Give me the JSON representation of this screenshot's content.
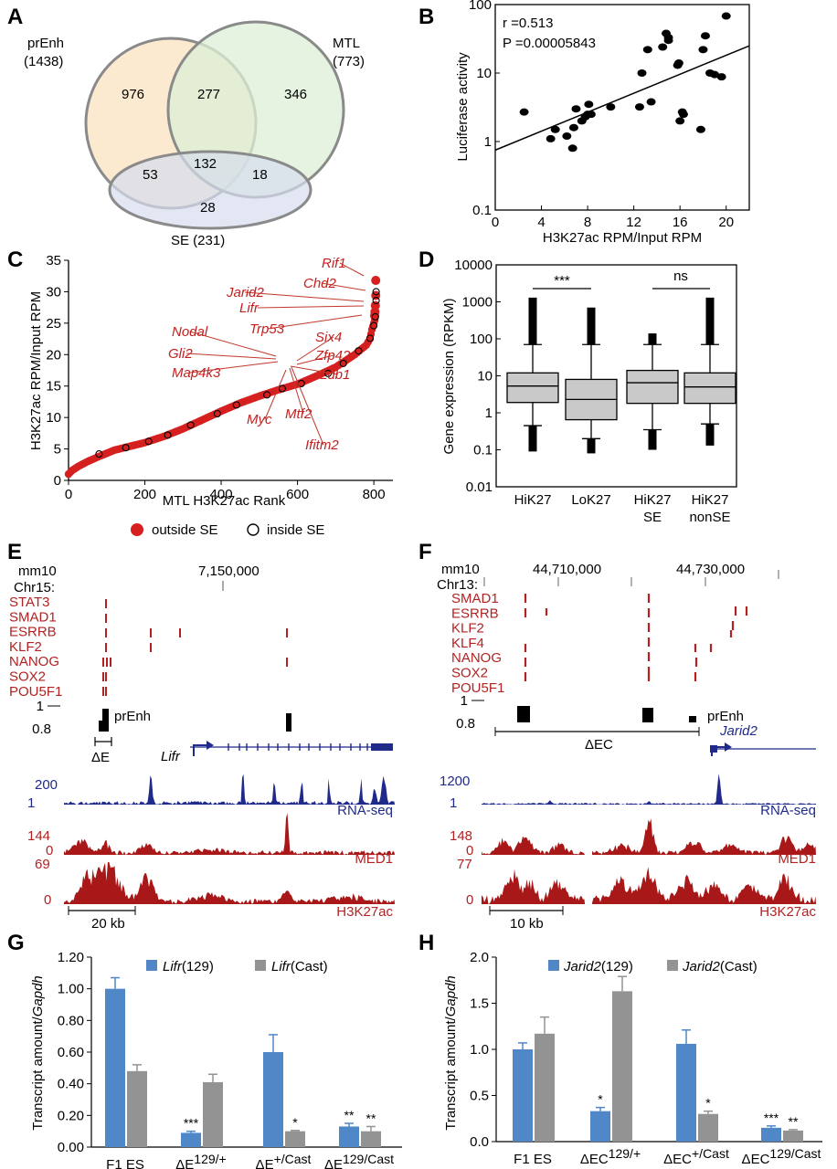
{
  "panels": {
    "A": {
      "label": "A",
      "sets": [
        {
          "name": "prEnh",
          "count": "(1438)",
          "color": "#fbe6c8"
        },
        {
          "name": "MTL",
          "count": "(773)",
          "color": "#dcefd6"
        },
        {
          "name": "SE (231)",
          "color": "#dce3f2"
        }
      ],
      "regions": {
        "prEnh_only": "976",
        "prEnh_MTL": "277",
        "MTL_only": "346",
        "prEnh_SE": "53",
        "all": "132",
        "MTL_SE": "18",
        "SE_only": "28"
      }
    },
    "B": {
      "label": "B",
      "r_text": "r =0.513",
      "p_text": "P =0.00005843",
      "xlabel": "H3K27ac RPM/Input RPM",
      "ylabel": "Luciferase activity",
      "xticks": [
        "0",
        "4",
        "8",
        "12",
        "16",
        "20"
      ],
      "yticks": [
        "100",
        "10",
        "1",
        "0.1"
      ]
    },
    "C": {
      "label": "C",
      "xlabel": "MTL H3K27ac Rank",
      "ylabel": "H3K27ac RPM/Input RPM",
      "xticks": [
        "0",
        "200",
        "400",
        "600",
        "800"
      ],
      "yticks": [
        "0",
        "5",
        "10",
        "15",
        "20",
        "25",
        "30",
        "35"
      ],
      "genes": [
        "Rif1",
        "Chd2",
        "Jarid2",
        "Lifr",
        "Trp53",
        "Nodal",
        "Gli2",
        "Map4k3",
        "Six4",
        "Zfp42",
        "Ldb1",
        "Myc",
        "Mtf2",
        "Ifitm2"
      ],
      "legend_outside": "outside SE",
      "legend_inside": "inside SE"
    },
    "D": {
      "label": "D",
      "ylabel": "Gene expression (RPKM)",
      "yticks": [
        "10000",
        "1000",
        "100",
        "10",
        "1",
        "0.1",
        "0.01"
      ],
      "groups": [
        {
          "line1": "HiK27",
          "line2": ""
        },
        {
          "line1": "LoK27",
          "line2": ""
        },
        {
          "line1": "HiK27",
          "line2": "SE"
        },
        {
          "line1": "HiK27",
          "line2": "nonSE"
        }
      ],
      "sig1": "***",
      "sig2": "ns"
    },
    "E": {
      "label": "E",
      "genome": "mm10",
      "chrom": "Chr15:",
      "coord": "7,150,000",
      "tracks": [
        "STAT3",
        "SMAD1",
        "ESRRB",
        "KLF2",
        "NANOG",
        "SOX2",
        "POU5F1"
      ],
      "prEnh_label": "prEnh",
      "score_max": "1",
      "score_min": "0.8",
      "deletion": "ΔE",
      "gene": "Lifr",
      "rna_max": "200",
      "rna_min": "1",
      "rna_label": "RNA-seq",
      "med1_max": "144",
      "med1_min": "0",
      "med1_label": "MED1",
      "k27_max": "69",
      "k27_min": "0",
      "k27_label": "H3K27ac",
      "scale": "20 kb"
    },
    "F": {
      "label": "F",
      "genome": "mm10",
      "chrom": "Chr13:",
      "coord1": "44,710,000",
      "coord2": "44,730,000",
      "tracks": [
        "SMAD1",
        "ESRRB",
        "KLF2",
        "KLF4",
        "NANOG",
        "SOX2",
        "POU5F1"
      ],
      "prEnh_label": "prEnh",
      "score_max": "1",
      "score_min": "0.8",
      "deletion": "ΔEC",
      "gene": "Jarid2",
      "rna_max": "1200",
      "rna_min": "1",
      "rna_label": "RNA-seq",
      "med1_max": "148",
      "med1_min": "0",
      "med1_label": "MED1",
      "k27_max": "77",
      "k27_min": "0",
      "k27_label": "H3K27ac",
      "scale": "10 kb"
    },
    "G": {
      "label": "G",
      "ylabel_pre": "Transcript amount/",
      "ylabel_it": "Gapdh",
      "legend1_it": "Lifr",
      "legend1": "(129)",
      "legend2_it": "Lifr",
      "legend2": "(Cast)",
      "yticks": [
        "1.20",
        "1.00",
        "0.80",
        "0.60",
        "0.40",
        "0.20",
        "0.00"
      ],
      "cats": [
        {
          "main": "F1 ES",
          "sup": ""
        },
        {
          "main": "ΔE",
          "sup": "129/+"
        },
        {
          "main": "ΔE",
          "sup": "+/Cast"
        },
        {
          "main": "ΔE",
          "sup": "129/Cast"
        }
      ],
      "stars": [
        "",
        "",
        "***",
        "",
        "",
        "*",
        "**",
        "**"
      ]
    },
    "H": {
      "label": "H",
      "ylabel_pre": "Transcript amount/",
      "ylabel_it": "Gapdh",
      "legend1_it": "Jarid2",
      "legend1": "(129)",
      "legend2_it": "Jarid2",
      "legend2": "(Cast)",
      "yticks": [
        "2.0",
        "1.5",
        "1.0",
        "0.5",
        "0.0"
      ],
      "cats": [
        {
          "main": "F1 ES",
          "sup": ""
        },
        {
          "main": "ΔEC",
          "sup": "129/+"
        },
        {
          "main": "ΔEC",
          "sup": "+/Cast"
        },
        {
          "main": "ΔEC",
          "sup": "129/Cast"
        }
      ],
      "stars": [
        "",
        "",
        "*",
        "",
        "",
        "*",
        "***",
        "**"
      ]
    }
  },
  "chart_data": [
    {
      "id": "B",
      "type": "scatter",
      "title": "",
      "xlabel": "H3K27ac RPM/Input RPM",
      "ylabel": "Luciferase activity",
      "xlim": [
        0,
        22
      ],
      "ylim": [
        0.1,
        100
      ],
      "yscale": "log",
      "x": [
        2.5,
        4.8,
        5.2,
        6.2,
        6.7,
        6.8,
        7.0,
        7.5,
        7.8,
        8.0,
        8.1,
        8.3,
        10.0,
        12.5,
        12.7,
        13.2,
        13.5,
        14.5,
        14.8,
        15.0,
        15.0,
        15.8,
        15.9,
        16.0,
        16.2,
        16.3,
        17.8,
        18.0,
        18.2,
        18.6,
        19.0,
        19.6,
        20.0
      ],
      "y": [
        2.7,
        1.1,
        1.5,
        1.2,
        0.8,
        1.6,
        3.0,
        2.0,
        2.3,
        2.5,
        3.5,
        2.5,
        3.2,
        3.2,
        10.0,
        22.0,
        3.8,
        24.0,
        38.0,
        30.0,
        33.0,
        13.0,
        14.0,
        2.0,
        2.7,
        2.5,
        1.5,
        22.0,
        35.0,
        10.0,
        9.5,
        8.8,
        68.0
      ],
      "fit": {
        "x": [
          0,
          22
        ],
        "y": [
          0.75,
          25
        ]
      }
    },
    {
      "id": "C",
      "type": "scatter",
      "xlabel": "MTL H3K27ac Rank",
      "ylabel": "H3K27ac RPM/Input RPM",
      "xlim": [
        0,
        850
      ],
      "ylim": [
        0,
        35
      ],
      "series": [
        {
          "name": "outside SE",
          "curve": [
            [
              0,
              1.0
            ],
            [
              10,
              1.6
            ],
            [
              25,
              2.2
            ],
            [
              50,
              3.0
            ],
            [
              80,
              3.8
            ],
            [
              120,
              4.8
            ],
            [
              160,
              5.4
            ],
            [
              200,
              6.0
            ],
            [
              250,
              7.0
            ],
            [
              300,
              8.2
            ],
            [
              350,
              9.6
            ],
            [
              400,
              11.0
            ],
            [
              450,
              12.3
            ],
            [
              500,
              13.4
            ],
            [
              550,
              14.4
            ],
            [
              600,
              15.3
            ],
            [
              650,
              16.6
            ],
            [
              700,
              18.0
            ],
            [
              750,
              20.0
            ],
            [
              780,
              21.5
            ],
            [
              790,
              22.5
            ],
            [
              795,
              24.0
            ],
            [
              800,
              25.0
            ],
            [
              805,
              26.0
            ]
          ],
          "highlights": [
            [
              805,
              31.8
            ],
            [
              805,
              29.4
            ],
            [
              804,
              27.8
            ],
            [
              803,
              26.8
            ],
            [
              802,
              26.2
            ]
          ]
        },
        {
          "name": "inside SE",
          "points": [
            [
              80,
              4.2
            ],
            [
              150,
              5.2
            ],
            [
              210,
              6.2
            ],
            [
              260,
              7.2
            ],
            [
              320,
              8.8
            ],
            [
              390,
              10.6
            ],
            [
              440,
              12.0
            ],
            [
              520,
              13.6
            ],
            [
              560,
              14.6
            ],
            [
              610,
              15.4
            ],
            [
              680,
              17.0
            ],
            [
              720,
              18.6
            ],
            [
              760,
              20.6
            ],
            [
              790,
              22.6
            ],
            [
              800,
              24.6
            ],
            [
              804,
              26.0
            ],
            [
              806,
              28.6
            ],
            [
              806,
              30.0
            ]
          ]
        }
      ]
    },
    {
      "id": "D",
      "type": "box",
      "ylabel": "Gene expression (RPKM)",
      "ylim": [
        0.01,
        10000
      ],
      "yscale": "log",
      "categories": [
        "HiK27",
        "LoK27",
        "HiK27 SE",
        "HiK27 nonSE"
      ],
      "boxes": [
        {
          "whisker_low": 0.45,
          "q1": 1.9,
          "median": 5.3,
          "q3": 12,
          "whisker_high": 70,
          "out_low": 0.09,
          "out_high": 1300
        },
        {
          "whisker_low": 0.2,
          "q1": 0.65,
          "median": 2.3,
          "q3": 8,
          "whisker_high": 70,
          "out_low": 0.08,
          "out_high": 700
        },
        {
          "whisker_low": 0.35,
          "q1": 1.8,
          "median": 6.5,
          "q3": 14,
          "whisker_high": 70,
          "out_low": 0.1,
          "out_high": 140
        },
        {
          "whisker_low": 0.5,
          "q1": 1.8,
          "median": 5,
          "q3": 12,
          "whisker_high": 70,
          "out_low": 0.13,
          "out_high": 1300
        }
      ]
    },
    {
      "id": "G",
      "type": "bar",
      "ylim": [
        0,
        1.2
      ],
      "categories": [
        "F1 ES",
        "ΔE129/+",
        "ΔE+/Cast",
        "ΔE129/Cast"
      ],
      "series": [
        {
          "name": "Lifr(129)",
          "color": "#4f87c7",
          "values": [
            1.0,
            0.09,
            0.6,
            0.13
          ],
          "errors": [
            0.07,
            0.01,
            0.11,
            0.02
          ]
        },
        {
          "name": "Lifr(Cast)",
          "color": "#939393",
          "values": [
            0.48,
            0.41,
            0.1,
            0.1
          ],
          "errors": [
            0.04,
            0.05,
            0.005,
            0.03
          ]
        }
      ]
    },
    {
      "id": "H",
      "type": "bar",
      "ylim": [
        0,
        2.0
      ],
      "categories": [
        "F1 ES",
        "ΔEC129/+",
        "ΔEC+/Cast",
        "ΔEC129/Cast"
      ],
      "series": [
        {
          "name": "Jarid2(129)",
          "color": "#4f87c7",
          "values": [
            1.0,
            0.33,
            1.06,
            0.15
          ],
          "errors": [
            0.07,
            0.04,
            0.15,
            0.02
          ]
        },
        {
          "name": "Jarid2(Cast)",
          "color": "#939393",
          "values": [
            1.17,
            1.63,
            0.3,
            0.12
          ],
          "errors": [
            0.18,
            0.16,
            0.03,
            0.01
          ]
        }
      ]
    }
  ]
}
